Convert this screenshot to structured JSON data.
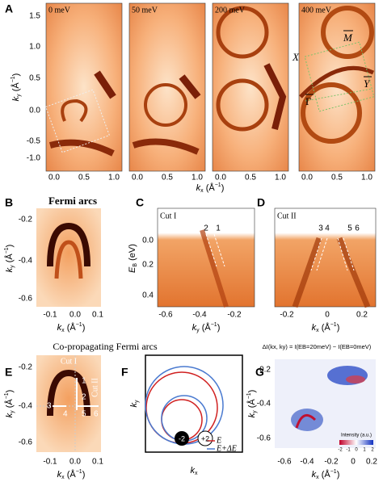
{
  "panels": {
    "A": {
      "label": "A",
      "insets": [
        "0 meV",
        "50 meV",
        "200 meV",
        "400 meV"
      ],
      "ylabel": [
        "k",
        "y",
        " (Å",
        "−1",
        ")"
      ],
      "yticks": [
        "1.5",
        "1.0",
        "0.5",
        "0.0",
        "-0.5",
        "-1.0"
      ],
      "xticks": [
        "0.0",
        "0.5",
        "1.0"
      ],
      "xlabel": [
        "k",
        "x",
        " (Å",
        "−1",
        ")"
      ],
      "points": [
        "X",
        "M",
        "Y",
        "Γ"
      ]
    },
    "B": {
      "label": "B",
      "title": "Fermi arcs",
      "ylabel": [
        "k",
        "y",
        " (Å",
        "−1",
        ")"
      ],
      "yticks": [
        "-0.2",
        "-0.4",
        "-0.6"
      ],
      "xticks": [
        "-0.1",
        "0.0",
        "0.1"
      ],
      "xlabel": [
        "k",
        "x",
        " (Å",
        "−1",
        ")"
      ]
    },
    "C": {
      "label": "C",
      "inset": "Cut I",
      "ylabel": [
        "E",
        "B",
        " (eV)"
      ],
      "yticks": [
        "0.0",
        "0.2",
        "0.4"
      ],
      "xticks": [
        "-0.6",
        "-0.4",
        "-0.2"
      ],
      "xlabel": [
        "k",
        "y",
        " (Å",
        "−1",
        ")"
      ],
      "arrows": [
        "2",
        "1"
      ]
    },
    "D": {
      "label": "D",
      "inset": "Cut II",
      "xticks": [
        "-0.2",
        "0",
        "0.2"
      ],
      "xlabel": [
        "k",
        "x",
        " (Å",
        "−1",
        ")"
      ],
      "arrows": [
        "3",
        "4",
        "5",
        "6"
      ]
    },
    "row_title": "Co-propagating Fermi arcs",
    "E": {
      "label": "E",
      "cuts": [
        "Cut I",
        "Cut II"
      ],
      "numbers": [
        "1",
        "2",
        "3",
        "4",
        "5",
        "6"
      ],
      "ylabel": [
        "k",
        "y",
        " (Å",
        "−1",
        ")"
      ],
      "yticks": [
        "-0.2",
        "-0.4",
        "-0.6"
      ],
      "xticks": [
        "-0.1",
        "0.0",
        "0.1"
      ],
      "xlabel": [
        "k",
        "x",
        " (Å",
        "−1",
        ")"
      ]
    },
    "F": {
      "label": "F",
      "ylabel": [
        "k",
        "y"
      ],
      "xlabel": [
        "k",
        "x"
      ],
      "charges": [
        "-2",
        "+2"
      ],
      "legend": [
        "E",
        "E+ΔE"
      ]
    },
    "G": {
      "label": "G",
      "formula": "ΔI(kx, ky) = I(EB=20meV) − I(EB=0meV)",
      "ylabel": [
        "k",
        "y",
        " (Å",
        "−1",
        ")"
      ],
      "yticks": [
        "-0.2",
        "-0.4",
        "-0.6"
      ],
      "xticks": [
        "-0.6",
        "-0.4",
        "-0.2",
        "0",
        "0.2"
      ],
      "xlabel": [
        "k",
        "x",
        " (Å",
        "−1",
        ")"
      ],
      "colorbar_title": "Intensity (a.u.)",
      "colorbar_ticks": [
        "-2",
        "-1",
        "0",
        "1",
        "2"
      ]
    }
  }
}
